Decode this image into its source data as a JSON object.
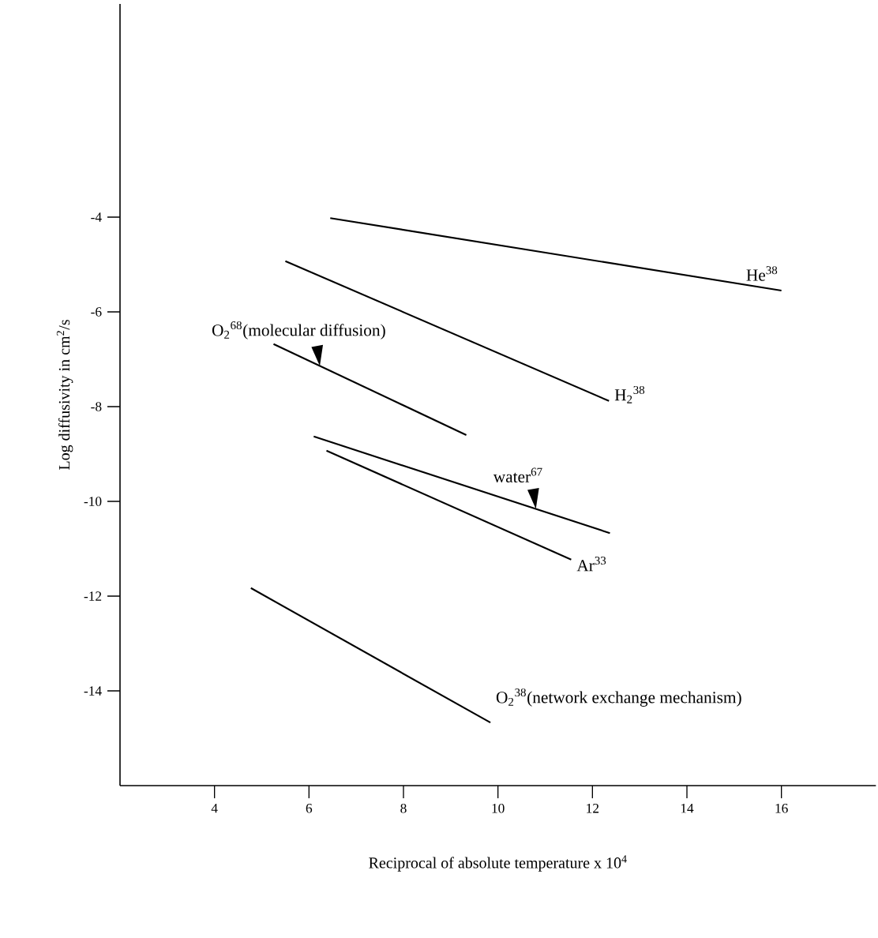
{
  "chart_data": {
    "type": "line",
    "xlabel": "Reciprocal of absolute temperature x 10$^{4}$",
    "ylabel": "Log diffusivity in cm$^{2}$/s",
    "xlim": [
      2,
      18
    ],
    "ylim": [
      -16,
      0.5
    ],
    "xticks": [
      4,
      6,
      8,
      10,
      12,
      14,
      16
    ],
    "yticks": [
      -4,
      -6,
      -8,
      -10,
      -12,
      -14
    ],
    "grid": false,
    "legend": false,
    "marker": "none",
    "line_style": "solid",
    "series": [
      {
        "name": "He$^{38}$",
        "color": "#000000",
        "x": [
          6.45,
          16
        ],
        "values": [
          -4.02,
          -5.55
        ]
      },
      {
        "name": "H$_{2}$$^{38}$",
        "color": "#000000",
        "x": [
          5.5,
          12.35
        ],
        "values": [
          -4.93,
          -7.88
        ]
      },
      {
        "name": "O$_{2}$$^{68}$(molecular diffusion)",
        "color": "#000000",
        "x": [
          5.25,
          9.33
        ],
        "values": [
          -6.68,
          -8.6
        ]
      },
      {
        "name": "water$^{67}$",
        "color": "#000000",
        "x": [
          6.1,
          12.37
        ],
        "values": [
          -8.63,
          -10.67
        ]
      },
      {
        "name": "Ar$^{33}$",
        "color": "#000000",
        "x": [
          6.37,
          11.55
        ],
        "values": [
          -8.93,
          -11.23
        ]
      },
      {
        "name": "O$_{2}$$^{38}$(network exchange mechanism)",
        "color": "#000000",
        "x": [
          4.77,
          9.84
        ],
        "values": [
          -11.83,
          -14.67
        ]
      }
    ]
  }
}
